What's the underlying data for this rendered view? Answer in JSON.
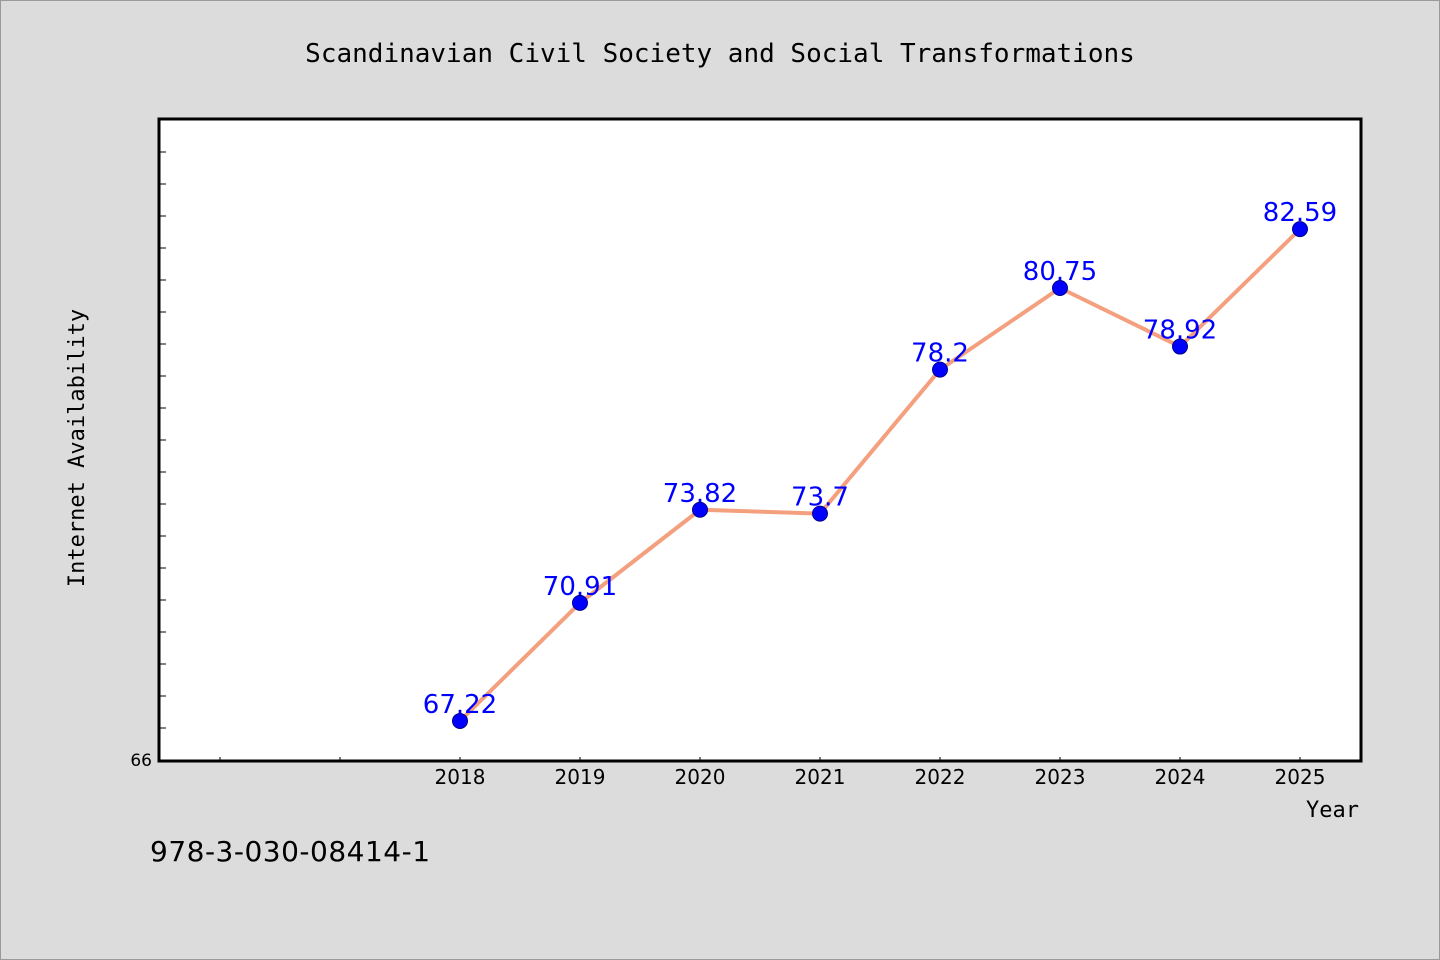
{
  "footer": {
    "isbn": "978-3-030-08414-1"
  },
  "chart_data": {
    "type": "line",
    "title": "Scandinavian Civil Society and Social Transformations",
    "xlabel": "Year",
    "ylabel": "Internet Availability",
    "x": [
      "2018",
      "2019",
      "2020",
      "2021",
      "2022",
      "2023",
      "2024",
      "2025"
    ],
    "x_axis_extra_slots": 2,
    "series": [
      {
        "values": [
          67.22,
          70.91,
          73.82,
          73.7,
          78.2,
          80.75,
          78.92,
          82.59
        ],
        "data_labels": [
          "67.22",
          "70.91",
          "73.82",
          "73.7",
          "78.2",
          "80.75",
          "78.92",
          "82.59"
        ],
        "line_color": "#f4a07e",
        "marker_color": "#0000ff"
      }
    ],
    "ylim": [
      66,
      86
    ],
    "y_tick_labels": [
      "66"
    ],
    "y_minor_tick_step": 1,
    "grid": false,
    "legend": "none",
    "label_color": "#0000ff",
    "plot_background": "#ffffff"
  }
}
